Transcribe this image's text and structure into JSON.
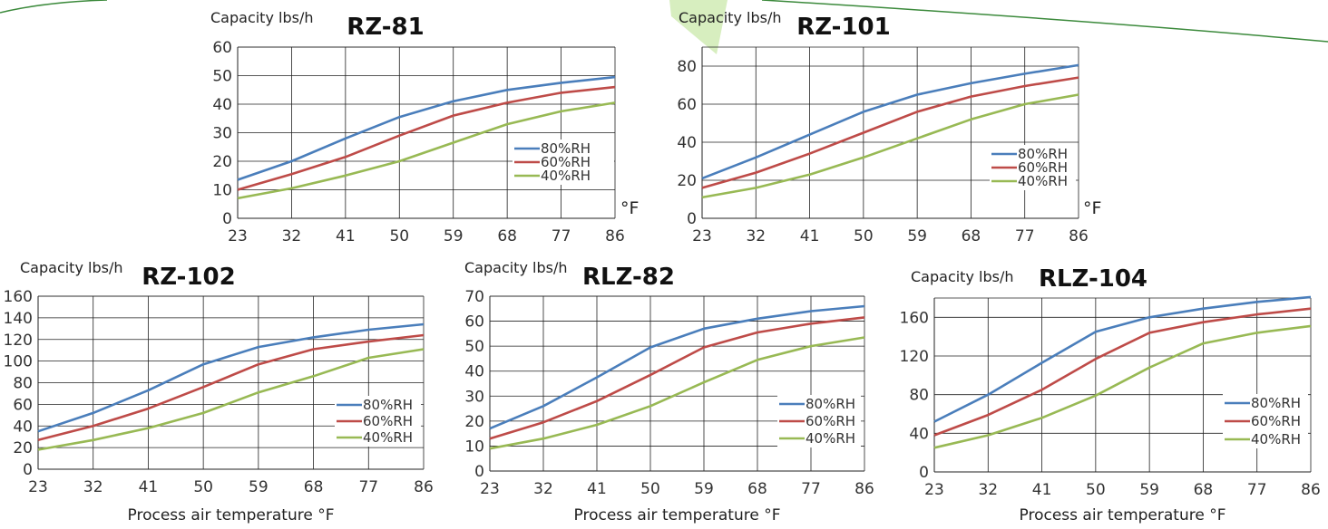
{
  "colors": {
    "80%RH": "#4a7ebb",
    "60%RH": "#be4b48",
    "40%RH": "#98b954"
  },
  "chart_data": [
    {
      "type": "line",
      "title": "RZ-81",
      "ylabel": "Capacity lbs/h",
      "x_unit": "°F",
      "xlabel": "",
      "x": [
        23,
        32,
        41,
        50,
        59,
        68,
        77,
        86
      ],
      "ylim": [
        0,
        60
      ],
      "yticks": [
        0,
        10,
        20,
        30,
        40,
        50,
        60
      ],
      "grid": true,
      "legend": "right",
      "series": [
        {
          "name": "80%RH",
          "values": [
            13.5,
            20,
            28,
            35.5,
            41,
            45,
            47.5,
            49.5
          ]
        },
        {
          "name": "60%RH",
          "values": [
            10,
            15.5,
            21.5,
            29,
            36,
            40.5,
            44,
            46
          ]
        },
        {
          "name": "40%RH",
          "values": [
            7,
            10.5,
            15,
            20,
            26.5,
            33,
            37.5,
            40.5
          ]
        }
      ]
    },
    {
      "type": "line",
      "title": "RZ-101",
      "ylabel": "Capacity lbs/h",
      "x_unit": "°F",
      "xlabel": "",
      "x": [
        23,
        32,
        41,
        50,
        59,
        68,
        77,
        86
      ],
      "ylim": [
        0,
        90
      ],
      "yticks": [
        0,
        20,
        40,
        60,
        80
      ],
      "grid": true,
      "legend": "right",
      "series": [
        {
          "name": "80%RH",
          "values": [
            21,
            32,
            44,
            56,
            65,
            71,
            76,
            80.5
          ]
        },
        {
          "name": "60%RH",
          "values": [
            16,
            24,
            34,
            45,
            56,
            64,
            69.5,
            74
          ]
        },
        {
          "name": "40%RH",
          "values": [
            11,
            16,
            23,
            32,
            42,
            52,
            60,
            65
          ]
        }
      ]
    },
    {
      "type": "line",
      "title": "RZ-102",
      "ylabel": "Capacity lbs/h",
      "x_unit": "",
      "xlabel": "Process air temperature °F",
      "x": [
        23,
        32,
        41,
        50,
        59,
        68,
        77,
        86
      ],
      "ylim": [
        0,
        160
      ],
      "yticks": [
        0,
        20,
        40,
        60,
        80,
        100,
        120,
        140,
        160
      ],
      "grid": true,
      "legend": "right",
      "series": [
        {
          "name": "80%RH",
          "values": [
            35,
            52,
            73,
            97,
            113,
            122,
            129,
            134
          ]
        },
        {
          "name": "60%RH",
          "values": [
            27,
            40,
            56,
            76,
            97,
            111,
            118,
            124
          ]
        },
        {
          "name": "40%RH",
          "values": [
            18,
            27,
            38,
            52,
            71,
            86,
            103,
            111
          ]
        }
      ]
    },
    {
      "type": "line",
      "title": "RLZ-82",
      "ylabel": "Capacity lbs/h",
      "x_unit": "",
      "xlabel": "Process air temperature °F",
      "x": [
        23,
        32,
        41,
        50,
        59,
        68,
        77,
        86
      ],
      "ylim": [
        0,
        70
      ],
      "yticks": [
        0,
        10,
        20,
        30,
        40,
        50,
        60,
        70
      ],
      "grid": true,
      "legend": "right",
      "series": [
        {
          "name": "80%RH",
          "values": [
            17,
            26,
            37.5,
            49.5,
            57,
            61,
            64,
            66
          ]
        },
        {
          "name": "60%RH",
          "values": [
            13,
            19.5,
            28,
            38.5,
            49.5,
            55.5,
            59,
            61.5
          ]
        },
        {
          "name": "40%RH",
          "values": [
            9,
            13,
            18.5,
            26,
            35.5,
            44.5,
            50,
            53.5
          ]
        }
      ]
    },
    {
      "type": "line",
      "title": "RLZ-104",
      "ylabel": "Capacity lbs/h",
      "x_unit": "",
      "xlabel": "Process air temperature °F",
      "x": [
        23,
        32,
        41,
        50,
        59,
        68,
        77,
        86
      ],
      "ylim": [
        0,
        180
      ],
      "yticks": [
        0,
        40,
        80,
        120,
        160
      ],
      "grid": true,
      "legend": "right",
      "series": [
        {
          "name": "80%RH",
          "values": [
            52,
            80,
            113,
            145,
            160,
            169,
            176,
            181
          ]
        },
        {
          "name": "60%RH",
          "values": [
            38,
            59,
            85,
            117,
            144,
            155,
            163,
            169
          ]
        },
        {
          "name": "40%RH",
          "values": [
            25,
            38,
            56,
            79,
            108,
            133,
            144,
            151
          ]
        }
      ]
    }
  ]
}
